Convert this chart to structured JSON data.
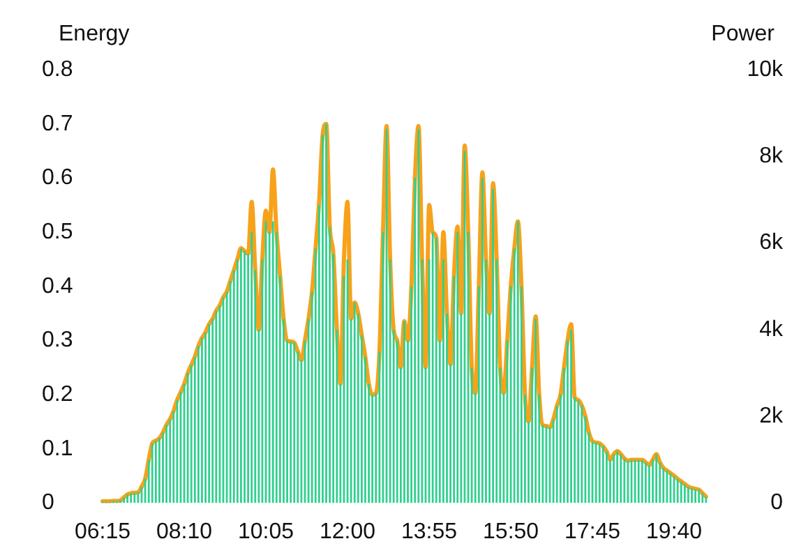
{
  "chart_data": {
    "type": "bar",
    "ylabel": "Energy",
    "y2label": "Power",
    "categories": [
      "06:15",
      null,
      null,
      null,
      null,
      null,
      null,
      null,
      null,
      null,
      null,
      null,
      null,
      null,
      null,
      null,
      null,
      null,
      null,
      null,
      null,
      null,
      null,
      "08:10",
      null,
      null,
      null,
      null,
      null,
      null,
      null,
      null,
      null,
      null,
      null,
      null,
      null,
      null,
      null,
      null,
      null,
      null,
      null,
      null,
      null,
      null,
      "10:05",
      null,
      null,
      null,
      null,
      null,
      null,
      null,
      null,
      null,
      null,
      null,
      null,
      null,
      null,
      null,
      null,
      null,
      null,
      null,
      null,
      null,
      null,
      "12:00",
      null,
      null,
      null,
      null,
      null,
      null,
      null,
      null,
      null,
      null,
      null,
      null,
      null,
      null,
      null,
      null,
      null,
      null,
      null,
      null,
      null,
      null,
      "13:55",
      null,
      null,
      null,
      null,
      null,
      null,
      null,
      null,
      null,
      null,
      null,
      null,
      null,
      null,
      null,
      null,
      null,
      null,
      null,
      null,
      null,
      null,
      "15:50",
      null,
      null,
      null,
      null,
      null,
      null,
      null,
      null,
      null,
      null,
      null,
      null,
      null,
      null,
      null,
      null,
      null,
      null,
      null,
      null,
      null,
      null,
      "17:45",
      null,
      null,
      null,
      null,
      null,
      null,
      null,
      null,
      null,
      null,
      null,
      null,
      null,
      null,
      null,
      null,
      null,
      null,
      null,
      null,
      null,
      null,
      "19:40",
      null,
      null,
      null,
      null,
      null,
      null,
      null,
      null,
      null
    ],
    "series": [
      {
        "color": "#2fd08e",
        "values": [
          0.003,
          0.003,
          0.003,
          0.004,
          0.004,
          0.005,
          0.01,
          0.016,
          0.018,
          0.019,
          0.02,
          0.03,
          0.045,
          0.08,
          0.11,
          0.115,
          0.12,
          0.13,
          0.145,
          0.155,
          0.17,
          0.19,
          0.205,
          0.22,
          0.24,
          0.255,
          0.27,
          0.29,
          0.305,
          0.315,
          0.33,
          0.34,
          0.355,
          0.365,
          0.38,
          0.39,
          0.41,
          0.43,
          0.45,
          0.47,
          0.465,
          0.46,
          0.5,
          0.43,
          0.32,
          0.45,
          0.52,
          0.5,
          0.52,
          0.5,
          0.42,
          0.34,
          0.3,
          0.298,
          0.296,
          0.28,
          0.264,
          0.3,
          0.34,
          0.39,
          0.47,
          0.55,
          0.68,
          0.7,
          0.51,
          0.46,
          0.32,
          0.22,
          0.42,
          0.45,
          0.34,
          0.37,
          0.35,
          0.31,
          0.27,
          0.22,
          0.2,
          0.203,
          0.28,
          0.5,
          0.69,
          0.45,
          0.32,
          0.3,
          0.25,
          0.336,
          0.3,
          0.4,
          0.6,
          0.69,
          0.45,
          0.25,
          0.45,
          0.5,
          0.49,
          0.3,
          0.45,
          0.35,
          0.256,
          0.42,
          0.5,
          0.35,
          0.65,
          0.5,
          0.25,
          0.203,
          0.4,
          0.6,
          0.45,
          0.35,
          0.58,
          0.45,
          0.25,
          0.203,
          0.3,
          0.4,
          0.47,
          0.52,
          0.4,
          0.2,
          0.15,
          0.25,
          0.34,
          0.2,
          0.144,
          0.142,
          0.14,
          0.155,
          0.18,
          0.2,
          0.25,
          0.3,
          0.32,
          0.195,
          0.19,
          0.18,
          0.16,
          0.13,
          0.114,
          0.112,
          0.11,
          0.105,
          0.095,
          0.08,
          0.09,
          0.096,
          0.09,
          0.082,
          0.078,
          0.08,
          0.08,
          0.08,
          0.08,
          0.075,
          0.07,
          0.08,
          0.09,
          0.075,
          0.065,
          0.06,
          0.055,
          0.05,
          0.045,
          0.04,
          0.035,
          0.03,
          0.028,
          0.026,
          0.025,
          0.018,
          0.012
        ]
      },
      {
        "type": "line",
        "axis": "y2",
        "color": "#f7a21b",
        "values": [
          40,
          40,
          40,
          50,
          50,
          60,
          130,
          200,
          230,
          240,
          250,
          380,
          560,
          1000,
          1380,
          1440,
          1500,
          1630,
          1810,
          1940,
          2130,
          2380,
          2560,
          2750,
          3000,
          3190,
          3380,
          3630,
          3810,
          3940,
          4130,
          4250,
          4440,
          4560,
          4750,
          4880,
          5130,
          5380,
          5630,
          5880,
          5810,
          5750,
          6950,
          5380,
          4000,
          5630,
          6750,
          6250,
          7700,
          6250,
          5250,
          4250,
          3750,
          3730,
          3700,
          3500,
          3300,
          3750,
          4250,
          4880,
          5880,
          6950,
          8500,
          8750,
          6380,
          5750,
          4000,
          2750,
          5630,
          6950,
          4250,
          4630,
          4380,
          3880,
          3380,
          2750,
          2500,
          2540,
          3500,
          6250,
          8700,
          5630,
          4000,
          3750,
          3130,
          4200,
          3750,
          5000,
          7500,
          8700,
          5630,
          3130,
          6880,
          6250,
          6130,
          3750,
          6250,
          4380,
          3200,
          5250,
          6380,
          4380,
          8250,
          6250,
          3130,
          2540,
          5000,
          7630,
          5630,
          4380,
          7380,
          5630,
          3130,
          2540,
          3750,
          5000,
          5880,
          6500,
          5000,
          2500,
          1880,
          3130,
          4310,
          2500,
          1800,
          1780,
          1750,
          1940,
          2250,
          2500,
          3130,
          3750,
          4130,
          2440,
          2380,
          2250,
          2000,
          1630,
          1430,
          1400,
          1380,
          1310,
          1190,
          1000,
          1130,
          1200,
          1130,
          1030,
          980,
          1000,
          1000,
          1000,
          1000,
          940,
          880,
          1000,
          1130,
          940,
          810,
          750,
          690,
          630,
          560,
          500,
          440,
          380,
          350,
          330,
          310,
          230,
          150
        ]
      }
    ],
    "ylim": [
      0,
      0.8
    ],
    "yticks": [
      0,
      0.1,
      0.2,
      0.3,
      0.4,
      0.5,
      0.6,
      0.7,
      0.8
    ],
    "y2lim": [
      0,
      10000
    ],
    "y2ticks": [
      0,
      {
        "value": 2000,
        "label": "2k"
      },
      {
        "value": 4000,
        "label": "4k"
      },
      {
        "value": 6000,
        "label": "6k"
      },
      {
        "value": 8000,
        "label": "8k"
      },
      {
        "value": 10000,
        "label": "10k"
      }
    ],
    "grid": false,
    "legend": false,
    "marker": "none",
    "line_style": "solid"
  }
}
